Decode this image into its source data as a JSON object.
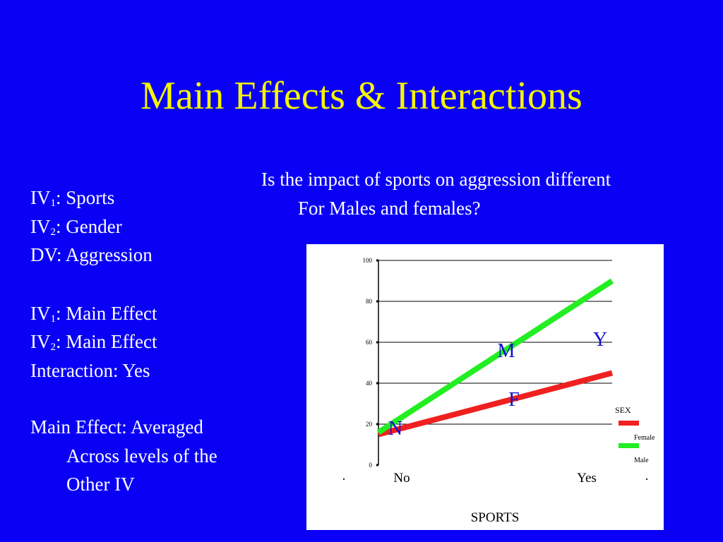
{
  "slide": {
    "title": "Main Effects & Interactions",
    "question_line1": "Is the impact of sports on aggression different",
    "question_line2": "For Males and females?",
    "left": {
      "iv1_prefix": "IV",
      "iv1_sub": "1",
      "iv1_text": ":  Sports",
      "iv2_prefix": "IV",
      "iv2_sub": "2",
      "iv2_text": ":  Gender",
      "dv": "DV:  Aggression",
      "iv1_effect_text": ":  Main Effect",
      "iv2_effect_text": ":  Main Effect",
      "interaction": "Interaction:  Yes",
      "main_effect_line1": "Main Effect:  Averaged",
      "main_effect_line2": "Across levels of the",
      "main_effect_line3": "Other IV"
    }
  },
  "chart_data": {
    "type": "line",
    "categories": [
      "No",
      "Yes"
    ],
    "xlabel": "SPORTS",
    "ylabel": "",
    "ylim": [
      0,
      100
    ],
    "yticks": [
      "0",
      "20",
      "40",
      "60",
      "80",
      "100"
    ],
    "grid": true,
    "legend_title": "SEX",
    "legend_placement": "right",
    "series": [
      {
        "name": "Female",
        "values": [
          15,
          45
        ],
        "color": "#f02020"
      },
      {
        "name": "Male",
        "values": [
          16,
          90
        ],
        "color": "#22ee22"
      }
    ],
    "x_edge_marks": [
      ".",
      "."
    ],
    "annotations": [
      {
        "text": "N",
        "x": "No",
        "y": 15,
        "color": "#1010d0"
      },
      {
        "text": "M",
        "x": "mid",
        "y": 53,
        "color": "#1010d0"
      },
      {
        "text": "F",
        "x": "mid",
        "y": 29,
        "color": "#1010d0"
      },
      {
        "text": "Y",
        "x": "Yes",
        "y": 59,
        "color": "#1010d0"
      }
    ]
  }
}
